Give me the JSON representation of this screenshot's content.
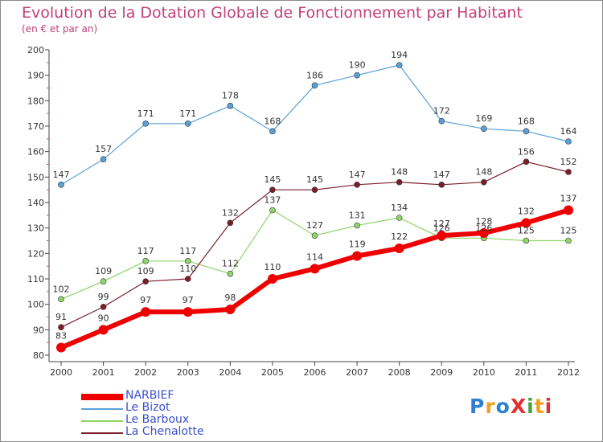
{
  "header": {
    "title": "Evolution de la Dotation Globale de Fonctionnement par Habitant",
    "subtitle": "(en € et par an)"
  },
  "logo": {
    "text": "ProXiti",
    "colors": [
      "#2e7fd0",
      "#f0a020",
      "#2e7fd0",
      "#e03030",
      "#4aa040",
      "#f0a020",
      "#e03030"
    ]
  },
  "chart_data": {
    "type": "line",
    "title": "Evolution de la Dotation Globale de Fonctionnement par Habitant",
    "subtitle": "(en € et par an)",
    "xlabel": "",
    "ylabel": "",
    "ylim": [
      80,
      200
    ],
    "yticks": [
      "80",
      "90",
      "100",
      "110",
      "120",
      "130",
      "140",
      "150",
      "160",
      "170",
      "180",
      "190",
      "200"
    ],
    "x": [
      "2000",
      "2001",
      "2002",
      "2003",
      "2004",
      "2005",
      "2006",
      "2007",
      "2008",
      "2009",
      "2010",
      "2011",
      "2012"
    ],
    "grid": false,
    "legend_position": "bottom-left",
    "series": [
      {
        "name": "NARBIEF",
        "color": "#ee0000",
        "values": [
          83,
          90,
          97,
          97,
          98,
          110,
          114,
          119,
          122,
          127,
          128,
          132,
          137
        ],
        "labels": [
          "83",
          "90",
          "97",
          "97",
          "98",
          "110",
          "114",
          "119",
          "122",
          "127",
          "128",
          "132",
          "137"
        ]
      },
      {
        "name": "Le Bizot",
        "color": "#5aa0d8",
        "values": [
          147,
          157,
          171,
          171,
          178,
          168,
          186,
          190,
          194,
          172,
          169,
          168,
          164
        ],
        "labels": [
          "147",
          "157",
          "171",
          "171",
          "178",
          "168",
          "186",
          "190",
          "194",
          "172",
          "169",
          "168",
          "164"
        ]
      },
      {
        "name": "Le Barboux",
        "color": "#8ed66a",
        "values": [
          102,
          109,
          117,
          117,
          112,
          137,
          127,
          131,
          134,
          126,
          126,
          125,
          125
        ],
        "labels": [
          "102",
          "109",
          "117",
          "117",
          "112",
          "137",
          "127",
          "131",
          "134",
          "126",
          "126",
          "125",
          "125"
        ]
      },
      {
        "name": "La Chenalotte",
        "color": "#7a1f2a",
        "values": [
          91,
          99,
          109,
          110,
          132,
          145,
          145,
          147,
          148,
          147,
          148,
          156,
          152
        ],
        "labels": [
          "91",
          "99",
          "109",
          "110",
          "132",
          "145",
          "145",
          "147",
          "148",
          "147",
          "148",
          "156",
          "152"
        ]
      }
    ]
  }
}
